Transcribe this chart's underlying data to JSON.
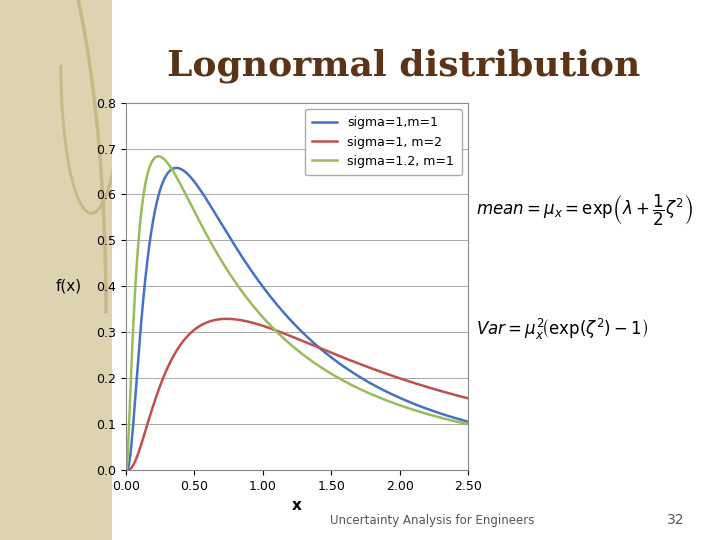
{
  "title": "Lognormal distribution",
  "xlabel": "x",
  "ylabel": "f(x)",
  "xlim": [
    0.0,
    2.5
  ],
  "ylim": [
    0.0,
    0.8
  ],
  "xticks": [
    0.0,
    0.5,
    1.0,
    1.5,
    2.0,
    2.5
  ],
  "yticks": [
    0.0,
    0.1,
    0.2,
    0.3,
    0.4,
    0.5,
    0.6,
    0.7,
    0.8
  ],
  "xtick_labels": [
    "0.00",
    "0.50",
    "1.00",
    "1.50",
    "2.00",
    "2.50"
  ],
  "ytick_labels": [
    "0.0",
    "0.1",
    "0.2",
    "0.3",
    "0.4",
    "0.5",
    "0.6",
    "0.7",
    "0.8"
  ],
  "series": [
    {
      "sigma": 1.0,
      "mu": 0.0,
      "color": "#4472C4",
      "label": "sigma=1,m=1"
    },
    {
      "sigma": 1.0,
      "mu": 0.6931,
      "color": "#C0504D",
      "label": "sigma=1, m=2"
    },
    {
      "sigma": 1.2,
      "mu": 0.0,
      "color": "#9BBB59",
      "label": "sigma=1.2, m=1"
    }
  ],
  "bg_color": "#EDE8D8",
  "white_bg": "#FFFFFF",
  "plot_bg_color": "#FFFFFF",
  "grid_color": "#AAAAAA",
  "title_color": "#5C3317",
  "title_fontsize": 26,
  "axis_label_fontsize": 11,
  "tick_fontsize": 9,
  "legend_fontsize": 9,
  "footer_text": "Uncertainty Analysis for Engineers",
  "footer_page": "32",
  "left_panel_color": "#DDD3B0",
  "left_panel_circle_color": "#C8B888"
}
